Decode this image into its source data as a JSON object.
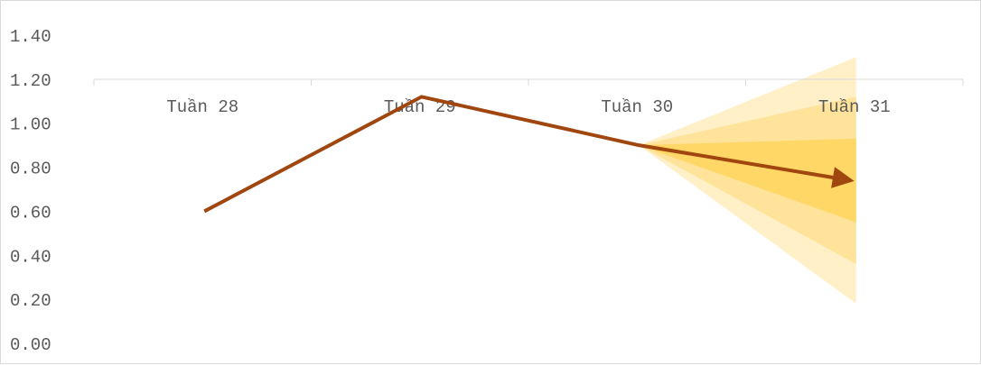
{
  "chart_data": {
    "type": "line",
    "title": "",
    "xlabel": "",
    "ylabel": "",
    "categories": [
      "Tuần 28",
      "Tuần 29",
      "Tuần 30",
      "Tuần 31"
    ],
    "y_ticks": [
      "0.00",
      "0.20",
      "0.40",
      "0.60",
      "0.80",
      "1.00",
      "1.20",
      "1.40"
    ],
    "ylim": [
      0,
      1.4
    ],
    "grid": false,
    "series": [
      {
        "values": [
          0.6,
          1.12,
          0.9,
          0.74
        ],
        "color": "#a0460f"
      }
    ],
    "forecast_fan": {
      "from_value": 0.9,
      "bands": [
        {
          "low": 0.18,
          "high": 1.3,
          "color": "#fff0c8"
        },
        {
          "low": 0.36,
          "high": 1.12,
          "color": "#ffe39a"
        },
        {
          "low": 0.55,
          "high": 0.93,
          "color": "#ffd766"
        }
      ]
    },
    "colors": {
      "axis": "#d9d9d9",
      "text": "#595959"
    }
  }
}
